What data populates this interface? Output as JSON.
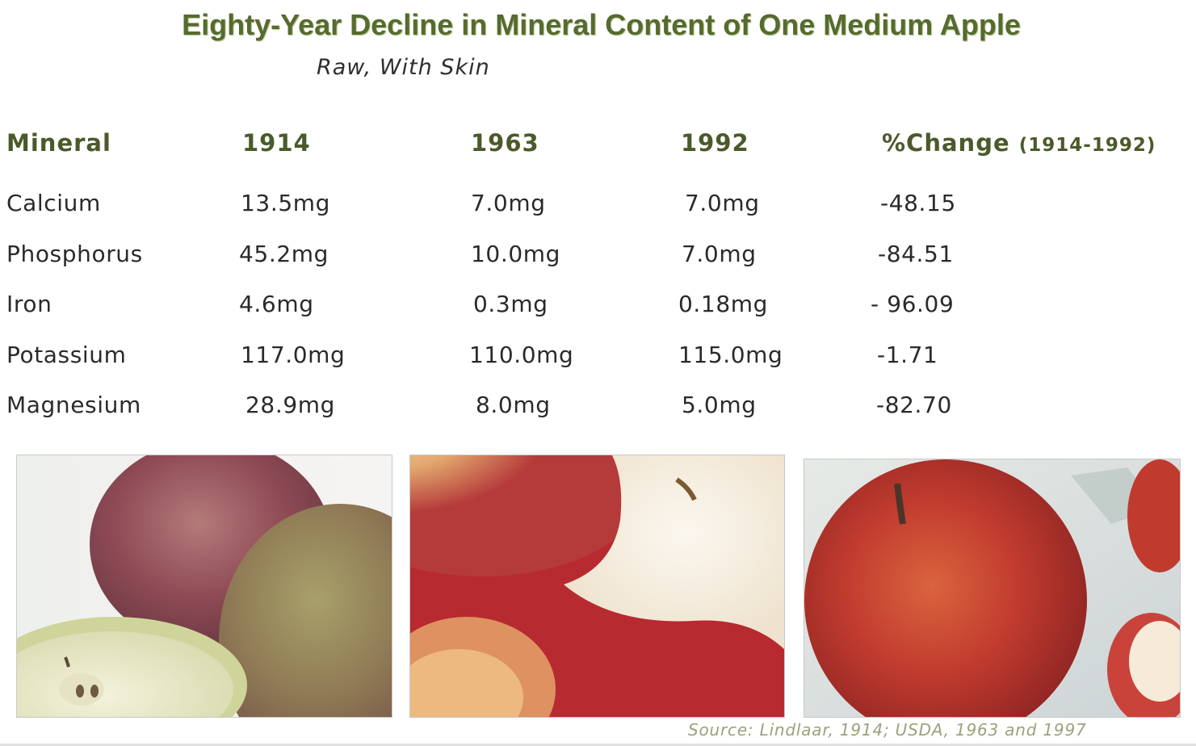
{
  "title": "Eighty-Year Decline in Mineral Content of One Medium Apple",
  "subtitle": "Raw, With Skin",
  "source": "Source: Lindlaar, 1914; USDA, 1963 and 1997",
  "colors": {
    "title": "#556b2f",
    "header": "#4a5a2a",
    "source": "#9aa27a"
  },
  "chart_data": {
    "type": "table",
    "title": "Eighty-Year Decline in Mineral Content of One Medium Apple",
    "subtitle": "Raw, With Skin",
    "columns": [
      "Mineral",
      "1914",
      "1963",
      "1992",
      "%Change",
      "(1914-1992)"
    ],
    "rows": [
      {
        "mineral": "Calcium",
        "y1914": "13.5mg",
        "y1963": "7.0mg",
        "y1992": "7.0mg",
        "change": "-48.15"
      },
      {
        "mineral": "Phosphorus",
        "y1914": "45.2mg",
        "y1963": "10.0mg",
        "y1992": "7.0mg",
        "change": "-84.51"
      },
      {
        "mineral": "Iron",
        "y1914": "4.6mg",
        "y1963": "0.3mg",
        "y1992": "0.18mg",
        "change": "- 96.09"
      },
      {
        "mineral": "Potassium",
        "y1914": "117.0mg",
        "y1963": "110.0mg",
        "y1992": "115.0mg",
        "change": "-1.71"
      },
      {
        "mineral": "Magnesium",
        "y1914": "28.9mg",
        "y1963": "8.0mg",
        "y1992": "5.0mg",
        "change": "-82.70"
      }
    ]
  }
}
